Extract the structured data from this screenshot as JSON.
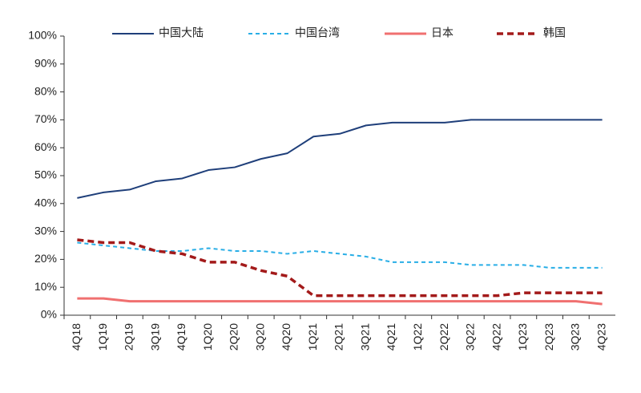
{
  "chart_data": {
    "type": "line",
    "categories": [
      "4Q18",
      "1Q19",
      "2Q19",
      "3Q19",
      "4Q19",
      "1Q20",
      "2Q20",
      "3Q20",
      "4Q20",
      "1Q21",
      "2Q21",
      "3Q21",
      "4Q21",
      "1Q22",
      "2Q22",
      "3Q22",
      "4Q22",
      "1Q23",
      "2Q23",
      "3Q23",
      "4Q23"
    ],
    "series": [
      {
        "name": "中国大陆",
        "color": "#1f3f7a",
        "dash": false,
        "width": 2,
        "values": [
          42,
          44,
          45,
          48,
          49,
          52,
          53,
          56,
          58,
          64,
          65,
          68,
          69,
          69,
          69,
          70,
          70,
          70,
          70,
          70,
          70
        ]
      },
      {
        "name": "中国台湾",
        "color": "#29aee6",
        "dash": true,
        "width": 2,
        "values": [
          26,
          25,
          24,
          23,
          23,
          24,
          23,
          23,
          22,
          23,
          22,
          21,
          19,
          19,
          19,
          18,
          18,
          18,
          17,
          17,
          17
        ]
      },
      {
        "name": "日本",
        "color": "#f07070",
        "dash": false,
        "width": 3,
        "values": [
          6,
          6,
          5,
          5,
          5,
          5,
          5,
          5,
          5,
          5,
          5,
          5,
          5,
          5,
          5,
          5,
          5,
          5,
          5,
          5,
          4
        ]
      },
      {
        "name": "韩国",
        "color": "#a31a1a",
        "dash": true,
        "width": 3.5,
        "values": [
          27,
          26,
          26,
          23,
          22,
          19,
          19,
          16,
          14,
          7,
          7,
          7,
          7,
          7,
          7,
          7,
          7,
          8,
          8,
          8,
          8
        ]
      }
    ],
    "ylim": [
      0,
      100
    ],
    "yticks": [
      {
        "value": 0,
        "label": "0%"
      },
      {
        "value": 10,
        "label": "10%"
      },
      {
        "value": 20,
        "label": "20%"
      },
      {
        "value": 30,
        "label": "30%"
      },
      {
        "value": 40,
        "label": "40%"
      },
      {
        "value": 50,
        "label": "50%"
      },
      {
        "value": 60,
        "label": "60%"
      },
      {
        "value": 70,
        "label": "70%"
      },
      {
        "value": 80,
        "label": "80%"
      },
      {
        "value": 90,
        "label": "90%"
      },
      {
        "value": 100,
        "label": "100%"
      }
    ],
    "grid": false,
    "legend": "top"
  }
}
